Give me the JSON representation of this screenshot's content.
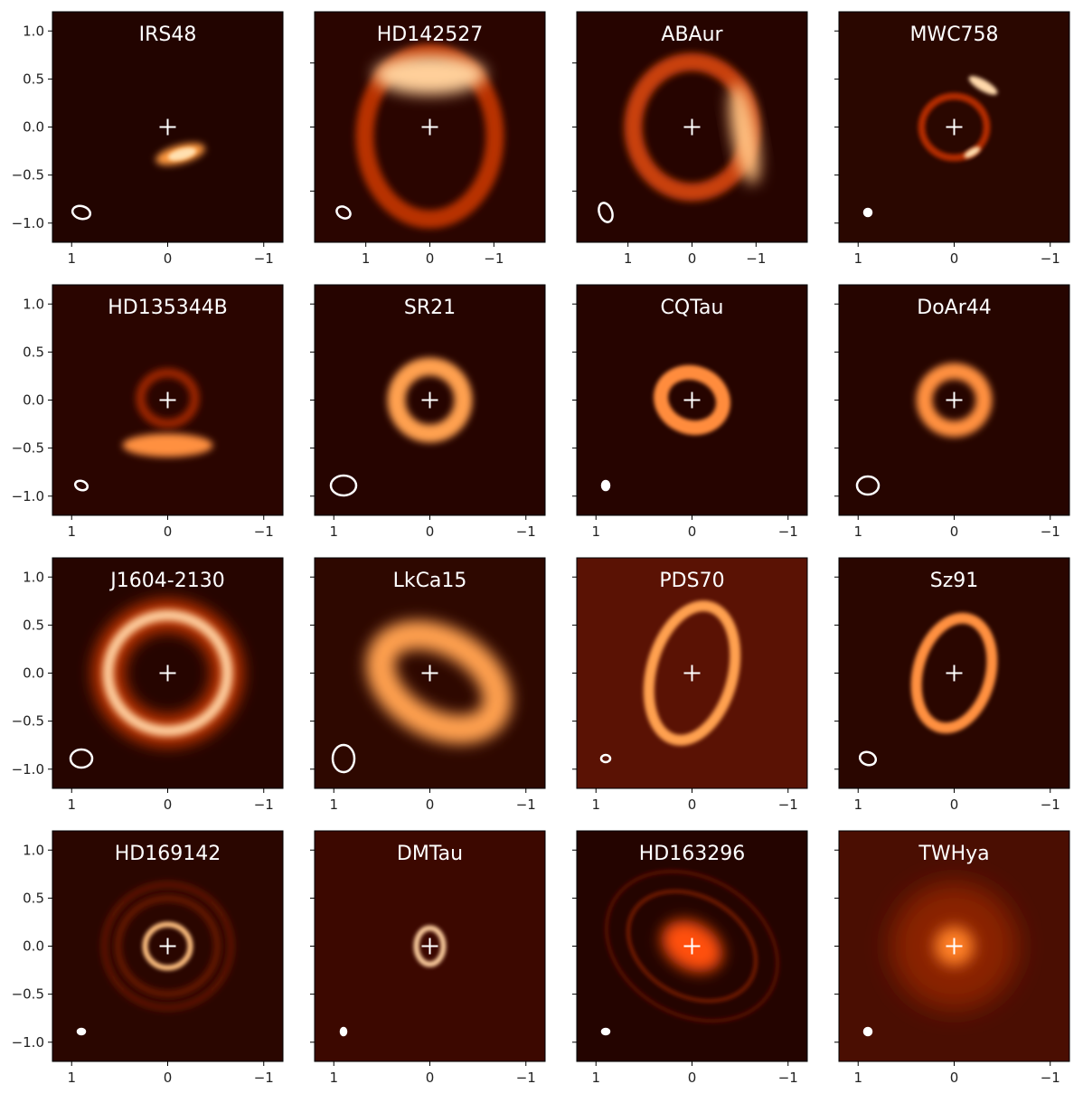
{
  "chart_data": [
    {
      "type": "image",
      "title": "IRS48",
      "xlim": [
        1.2,
        -1.2
      ],
      "ylim": [
        -1.2,
        1.2
      ],
      "xticks": [
        1,
        0,
        {
          "value": -1,
          "label": "−1"
        }
      ],
      "yticks": [
        {
          "value": 1,
          "label": "1.0"
        },
        {
          "value": 0.5,
          "label": "0.5"
        },
        {
          "value": 0,
          "label": "0.0"
        },
        {
          "value": -0.5,
          "label": "−0.5"
        },
        {
          "value": -1,
          "label": "−1.0"
        }
      ],
      "show_ytick_labels": true
    },
    {
      "type": "image",
      "title": "HD142527",
      "xlim": [
        1.8,
        -1.8
      ],
      "ylim": [
        -1.8,
        1.8
      ],
      "xticks": [
        1,
        0,
        {
          "value": -1,
          "label": "−1"
        }
      ],
      "yticks": [
        1,
        0,
        -1
      ],
      "show_ytick_labels": false
    },
    {
      "type": "image",
      "title": "ABAur",
      "xlim": [
        1.8,
        -1.8
      ],
      "ylim": [
        -1.8,
        1.8
      ],
      "xticks": [
        1,
        0,
        {
          "value": -1,
          "label": "−1"
        }
      ],
      "yticks": [
        1,
        0,
        -1
      ],
      "show_ytick_labels": false
    },
    {
      "type": "image",
      "title": "MWC758",
      "xlim": [
        1.2,
        -1.2
      ],
      "ylim": [
        -1.2,
        1.2
      ],
      "xticks": [
        1,
        0,
        {
          "value": -1,
          "label": "−1"
        }
      ],
      "yticks": [
        1,
        0.5,
        0,
        -0.5,
        -1
      ],
      "show_ytick_labels": false
    },
    {
      "type": "image",
      "title": "HD135344B",
      "xlim": [
        1.2,
        -1.2
      ],
      "ylim": [
        -1.2,
        1.2
      ],
      "xticks": [
        1,
        0,
        {
          "value": -1,
          "label": "−1"
        }
      ],
      "yticks": [
        {
          "value": 1,
          "label": "1.0"
        },
        {
          "value": 0.5,
          "label": "0.5"
        },
        {
          "value": 0,
          "label": "0.0"
        },
        {
          "value": -0.5,
          "label": "−0.5"
        },
        {
          "value": -1,
          "label": "−1.0"
        }
      ],
      "show_ytick_labels": true
    },
    {
      "type": "image",
      "title": "SR21",
      "xlim": [
        1.2,
        -1.2
      ],
      "ylim": [
        -1.2,
        1.2
      ],
      "xticks": [
        1,
        0,
        {
          "value": -1,
          "label": "−1"
        }
      ],
      "yticks": [
        1,
        0.5,
        0,
        -0.5,
        -1
      ],
      "show_ytick_labels": false
    },
    {
      "type": "image",
      "title": "CQTau",
      "xlim": [
        1.2,
        -1.2
      ],
      "ylim": [
        -1.2,
        1.2
      ],
      "xticks": [
        1,
        0,
        {
          "value": -1,
          "label": "−1"
        }
      ],
      "yticks": [
        1,
        0.5,
        0,
        -0.5,
        -1
      ],
      "show_ytick_labels": false
    },
    {
      "type": "image",
      "title": "DoAr44",
      "xlim": [
        1.2,
        -1.2
      ],
      "ylim": [
        -1.2,
        1.2
      ],
      "xticks": [
        1,
        0,
        {
          "value": -1,
          "label": "−1"
        }
      ],
      "yticks": [
        1,
        0.5,
        0,
        -0.5,
        -1
      ],
      "show_ytick_labels": false
    },
    {
      "type": "image",
      "title": "J1604-2130",
      "xlim": [
        1.2,
        -1.2
      ],
      "ylim": [
        -1.2,
        1.2
      ],
      "xticks": [
        1,
        0,
        {
          "value": -1,
          "label": "−1"
        }
      ],
      "yticks": [
        {
          "value": 1,
          "label": "1.0"
        },
        {
          "value": 0.5,
          "label": "0.5"
        },
        {
          "value": 0,
          "label": "0.0"
        },
        {
          "value": -0.5,
          "label": "−0.5"
        },
        {
          "value": -1,
          "label": "−1.0"
        }
      ],
      "show_ytick_labels": true
    },
    {
      "type": "image",
      "title": "LkCa15",
      "xlim": [
        1.2,
        -1.2
      ],
      "ylim": [
        -1.2,
        1.2
      ],
      "xticks": [
        1,
        0,
        {
          "value": -1,
          "label": "−1"
        }
      ],
      "yticks": [
        1,
        0.5,
        0,
        -0.5,
        -1
      ],
      "show_ytick_labels": false
    },
    {
      "type": "image",
      "title": "PDS70",
      "xlim": [
        1.2,
        -1.2
      ],
      "ylim": [
        -1.2,
        1.2
      ],
      "xticks": [
        1,
        0,
        {
          "value": -1,
          "label": "−1"
        }
      ],
      "yticks": [
        1,
        0.5,
        0,
        -0.5,
        -1
      ],
      "show_ytick_labels": false
    },
    {
      "type": "image",
      "title": "Sz91",
      "xlim": [
        1.2,
        -1.2
      ],
      "ylim": [
        -1.2,
        1.2
      ],
      "xticks": [
        1,
        0,
        {
          "value": -1,
          "label": "−1"
        }
      ],
      "yticks": [
        1,
        0.5,
        0,
        -0.5,
        -1
      ],
      "show_ytick_labels": false
    },
    {
      "type": "image",
      "title": "HD169142",
      "xlim": [
        1.2,
        -1.2
      ],
      "ylim": [
        -1.2,
        1.2
      ],
      "xticks": [
        1,
        0,
        {
          "value": -1,
          "label": "−1"
        }
      ],
      "yticks": [
        {
          "value": 1,
          "label": "1.0"
        },
        {
          "value": 0.5,
          "label": "0.5"
        },
        {
          "value": 0,
          "label": "0.0"
        },
        {
          "value": -0.5,
          "label": "−0.5"
        },
        {
          "value": -1,
          "label": "−1.0"
        }
      ],
      "show_ytick_labels": true
    },
    {
      "type": "image",
      "title": "DMTau",
      "xlim": [
        1.2,
        -1.2
      ],
      "ylim": [
        -1.2,
        1.2
      ],
      "xticks": [
        1,
        0,
        {
          "value": -1,
          "label": "−1"
        }
      ],
      "yticks": [
        1,
        0.5,
        0,
        -0.5,
        -1
      ],
      "show_ytick_labels": false
    },
    {
      "type": "image",
      "title": "HD163296",
      "xlim": [
        1.2,
        -1.2
      ],
      "ylim": [
        -1.2,
        1.2
      ],
      "xticks": [
        1,
        0,
        {
          "value": -1,
          "label": "−1"
        }
      ],
      "yticks": [
        1,
        0.5,
        0,
        -0.5,
        -1
      ],
      "show_ytick_labels": false
    },
    {
      "type": "image",
      "title": "TWHya",
      "xlim": [
        1.2,
        -1.2
      ],
      "ylim": [
        -1.2,
        1.2
      ],
      "xticks": [
        1,
        0,
        {
          "value": -1,
          "label": "−1"
        }
      ],
      "yticks": [
        1,
        0.5,
        0,
        -0.5,
        -1
      ],
      "show_ytick_labels": false
    }
  ]
}
